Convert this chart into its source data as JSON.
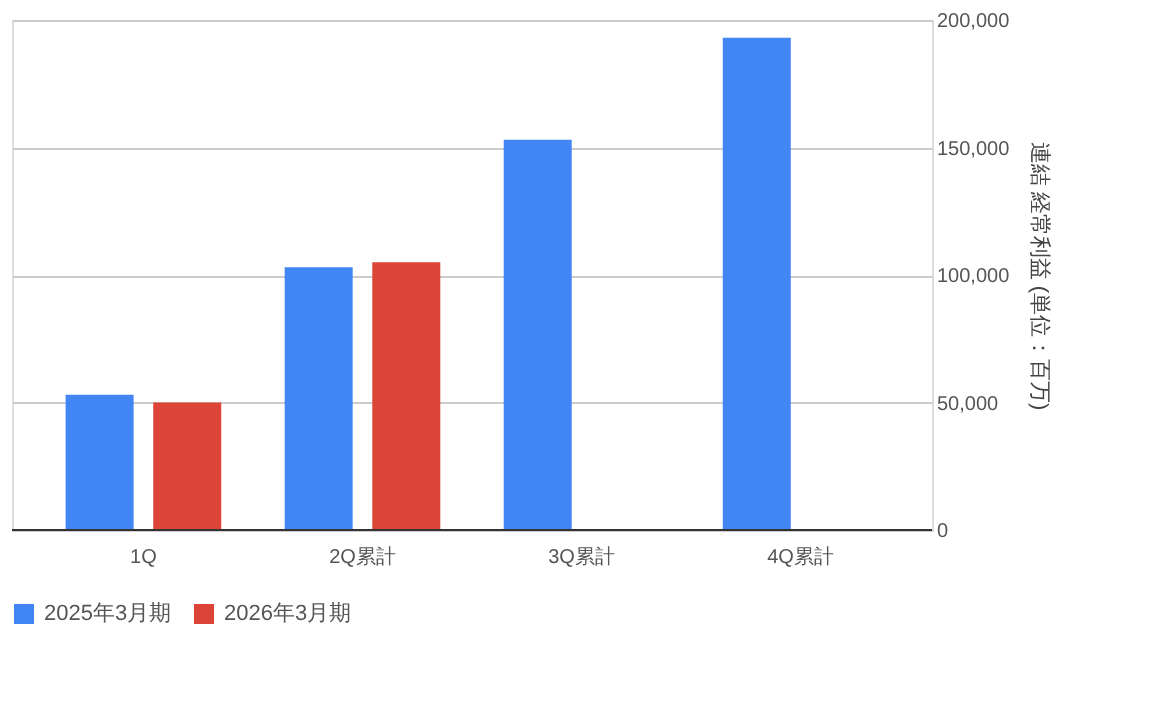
{
  "chart_data": {
    "type": "bar",
    "ylabel": "連結 経常利益 (単位：百万)",
    "categories": [
      "1Q",
      "2Q累計",
      "3Q累計",
      "4Q累計"
    ],
    "series": [
      {
        "name": "2025年3月期",
        "color": "#4285f4",
        "values": [
          53000,
          103000,
          153000,
          193000
        ]
      },
      {
        "name": "2026年3月期",
        "color": "#db4437",
        "values": [
          50000,
          105000,
          null,
          null
        ]
      }
    ],
    "ylim": [
      0,
      200000
    ],
    "yticks": [
      {
        "value": 0,
        "label": "0"
      },
      {
        "value": 50000,
        "label": "50,000"
      },
      {
        "value": 100000,
        "label": "100,000"
      },
      {
        "value": 150000,
        "label": "150,000"
      },
      {
        "value": 200000,
        "label": "200,000"
      }
    ],
    "grid": "y",
    "legend": "bottom"
  }
}
